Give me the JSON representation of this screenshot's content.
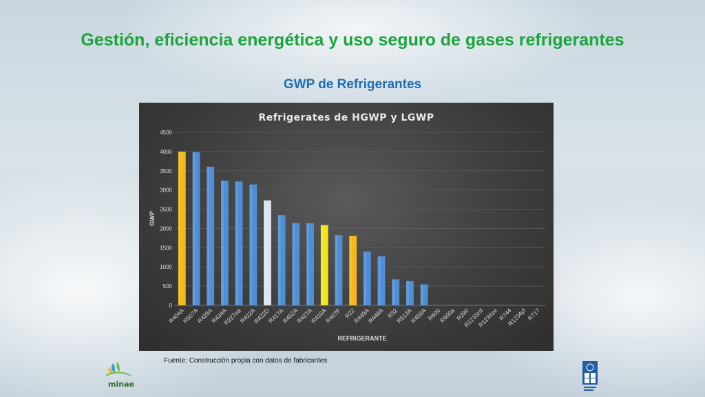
{
  "slide": {
    "title": "Gestión, eficiencia energética y uso seguro de gases refrigerantes",
    "subtitle": "GWP de Refrigerantes",
    "source": "Fuente: Construcción propia con datos de fabricantes",
    "logos": {
      "left": "minae",
      "right_icon": "undp-logo"
    }
  },
  "chart_data": {
    "type": "bar",
    "title": "Refrigerates de HGWP y LGWP",
    "xlabel": "REFRIGERANTE",
    "ylabel": "GWP",
    "ylim": [
      0,
      4500
    ],
    "yticks": [
      0,
      500,
      1000,
      1500,
      2000,
      2500,
      3000,
      3500,
      4000,
      4500
    ],
    "grid": true,
    "categories": [
      "R404A",
      "R507A",
      "R428A",
      "R434A",
      "R227ea",
      "R422A",
      "R422D",
      "R417A",
      "R452A",
      "R427A",
      "R410A",
      "R407F",
      "R22",
      "R449A",
      "R448A",
      "R32",
      "R513A",
      "R450A",
      "R600",
      "R600a",
      "R290",
      "R1233zd",
      "R1234ze",
      "R744",
      "R1234yf",
      "R717"
    ],
    "values": [
      3997,
      3985,
      3607,
      3245,
      3220,
      3143,
      2729,
      2346,
      2140,
      2138,
      2088,
      1824,
      1810,
      1397,
      1273,
      675,
      631,
      547,
      4,
      3,
      3,
      1,
      1,
      1,
      1,
      0
    ],
    "colors": {
      "default": "#4f8fd6",
      "highlight_orange": "#f3b81a",
      "highlight_yellow": "#f2e61a",
      "highlight_white": "#dde6f0"
    },
    "bar_color_keys": [
      "highlight_orange",
      "default",
      "default",
      "default",
      "default",
      "default",
      "highlight_white",
      "default",
      "default",
      "default",
      "highlight_yellow",
      "default",
      "highlight_orange",
      "default",
      "default",
      "default",
      "default",
      "default",
      "default",
      "default",
      "default",
      "default",
      "default",
      "default",
      "default",
      "default"
    ]
  }
}
